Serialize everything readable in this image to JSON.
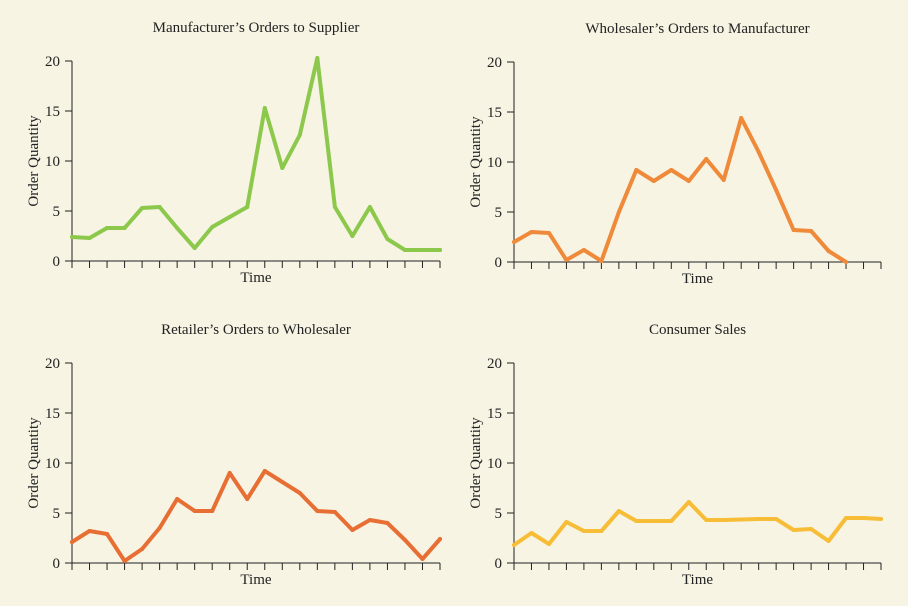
{
  "chart_data": [
    {
      "type": "line",
      "title": "Manufacturer’s Orders to Supplier",
      "xlabel": "Time",
      "ylabel": "Order Quantity",
      "ylim": [
        0,
        20
      ],
      "yticks": [
        0,
        5,
        10,
        15,
        20
      ],
      "x_tick_count": 22,
      "color": "#8cc84b",
      "x": [
        0,
        1,
        2,
        3,
        4,
        5,
        6,
        7,
        8,
        9,
        10,
        11,
        12,
        13,
        14,
        15,
        16,
        17,
        18,
        19,
        20,
        21
      ],
      "values": [
        2.4,
        2.3,
        3.3,
        3.3,
        5.3,
        5.4,
        3.3,
        1.3,
        3.4,
        4.4,
        5.4,
        15.3,
        9.3,
        12.6,
        20.3,
        5.4,
        2.5,
        5.4,
        2.2,
        1.1,
        1.1,
        1.1
      ]
    },
    {
      "type": "line",
      "title": "Wholesaler’s Orders to Manufacturer",
      "xlabel": "Time",
      "ylabel": "Order Quantity",
      "ylim": [
        0,
        20
      ],
      "yticks": [
        0,
        5,
        10,
        15,
        20
      ],
      "x_tick_count": 22,
      "color": "#ef8a3a",
      "x": [
        0,
        1,
        2,
        3,
        4,
        5,
        6,
        7,
        8,
        9,
        10,
        11,
        12,
        13,
        14,
        15,
        16,
        17,
        18,
        19
      ],
      "values": [
        2.0,
        3.0,
        2.9,
        0.2,
        1.2,
        0.1,
        5.0,
        9.2,
        8.1,
        9.2,
        8.1,
        10.3,
        8.2,
        14.4,
        11.0,
        7.2,
        3.2,
        3.1,
        1.1,
        0.0
      ]
    },
    {
      "type": "line",
      "title": "Retailer’s Orders to Wholesaler",
      "xlabel": "Time",
      "ylabel": "Order Quantity",
      "ylim": [
        0,
        20
      ],
      "yticks": [
        0,
        5,
        10,
        15,
        20
      ],
      "x_tick_count": 22,
      "color": "#e86f34",
      "x": [
        0,
        1,
        2,
        3,
        4,
        5,
        6,
        7,
        8,
        9,
        10,
        11,
        12,
        13,
        14,
        15,
        16,
        17,
        18,
        19,
        20,
        21
      ],
      "values": [
        2.1,
        3.2,
        2.9,
        0.2,
        1.4,
        3.5,
        6.4,
        5.2,
        5.2,
        9.0,
        6.4,
        9.2,
        8.1,
        7.0,
        5.2,
        5.1,
        3.3,
        4.3,
        4.0,
        2.3,
        0.4,
        2.4
      ]
    },
    {
      "type": "line",
      "title": "Consumer Sales",
      "xlabel": "Time",
      "ylabel": "Order Quantity",
      "ylim": [
        0,
        20
      ],
      "yticks": [
        0,
        5,
        10,
        15,
        20
      ],
      "x_tick_count": 22,
      "color": "#f7bd37",
      "x": [
        0,
        1,
        2,
        3,
        4,
        5,
        6,
        7,
        8,
        9,
        10,
        11,
        12,
        13,
        14,
        15,
        16,
        17,
        18,
        19,
        20,
        21
      ],
      "values": [
        1.8,
        3.0,
        1.9,
        4.1,
        3.2,
        3.2,
        5.2,
        4.2,
        4.2,
        4.2,
        6.1,
        4.3,
        4.3,
        4.35,
        4.4,
        4.4,
        3.3,
        3.4,
        2.2,
        4.5,
        4.5,
        4.4
      ]
    }
  ]
}
